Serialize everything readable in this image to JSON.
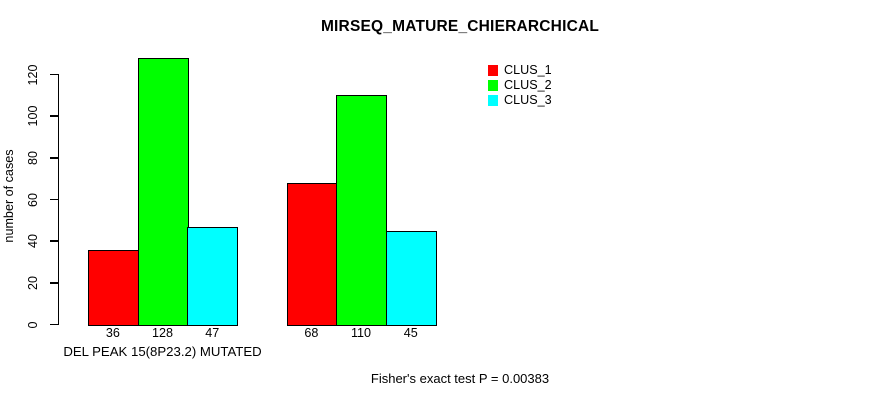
{
  "chart_data": {
    "type": "bar",
    "title": "MIRSEQ_MATURE_CHIERARCHICAL",
    "ylabel": "number of cases",
    "xlabel": "",
    "footer": "Fisher's exact test P = 0.00383",
    "categories": [
      "DEL PEAK 15(8P23.2) MUTATED",
      ""
    ],
    "series": [
      {
        "name": "CLUS_1",
        "color": "#ff0000",
        "values": [
          36,
          68
        ]
      },
      {
        "name": "CLUS_2",
        "color": "#00ff00",
        "values": [
          128,
          110
        ]
      },
      {
        "name": "CLUS_3",
        "color": "#00ffff",
        "values": [
          47,
          45
        ]
      }
    ],
    "bar_value_labels": [
      [
        36,
        128,
        47
      ],
      [
        68,
        110,
        45
      ]
    ],
    "yticks": [
      0,
      20,
      40,
      60,
      80,
      100,
      120
    ],
    "ylim": [
      0,
      130
    ],
    "grid": false,
    "legend_position": "top-right",
    "axis_color": "#000000",
    "background_color": "#ffffff"
  }
}
